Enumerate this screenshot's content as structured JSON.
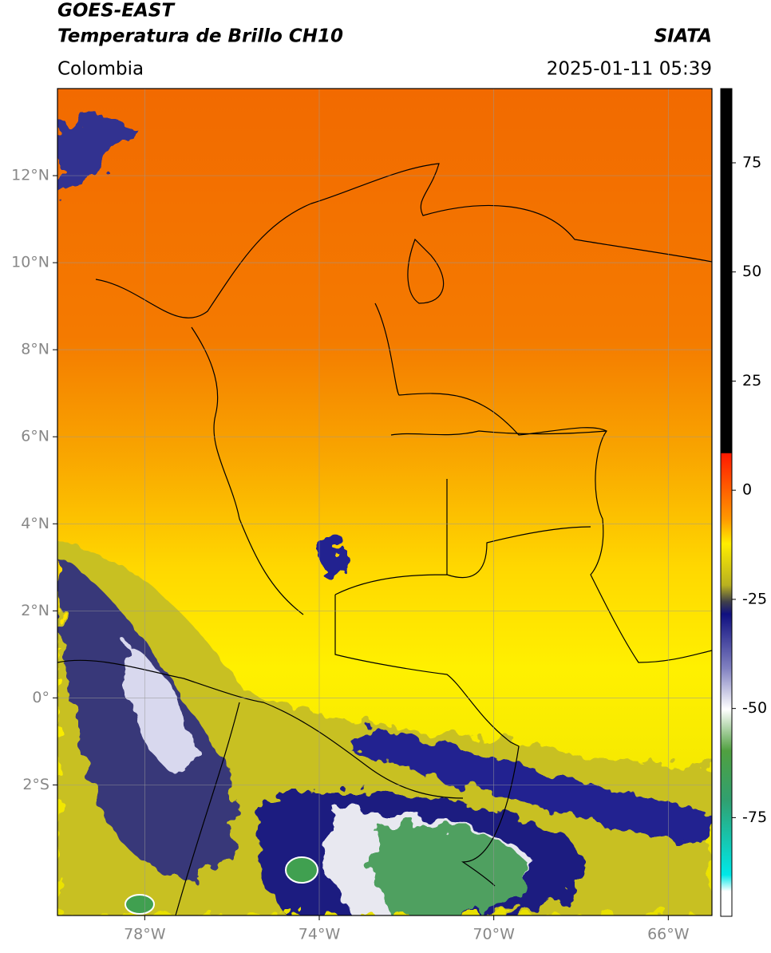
{
  "header": {
    "title": "GOES-EAST",
    "subtitle": "Temperatura de Brillo CH10",
    "source": "SIATA",
    "region": "Colombia",
    "timestamp": "2025-01-11 05:39"
  },
  "map": {
    "xlim": [
      -80,
      -65
    ],
    "ylim": [
      -5,
      14
    ],
    "xticks": [
      {
        "value": -78,
        "label": "78°W"
      },
      {
        "value": -74,
        "label": "74°W"
      },
      {
        "value": -70,
        "label": "70°W"
      },
      {
        "value": -66,
        "label": "66°W"
      }
    ],
    "yticks": [
      {
        "value": 12,
        "label": "12°N"
      },
      {
        "value": 10,
        "label": "10°N"
      },
      {
        "value": 8,
        "label": "8°N"
      },
      {
        "value": 6,
        "label": "6°N"
      },
      {
        "value": 4,
        "label": "4°N"
      },
      {
        "value": 2,
        "label": "2°N"
      },
      {
        "value": 0,
        "label": "0°"
      },
      {
        "value": -2,
        "label": "2°S"
      }
    ]
  },
  "colorbar": {
    "lim": [
      -97.6,
      92
    ],
    "ticks": [
      75,
      50,
      25,
      0,
      -25,
      -50,
      -75
    ]
  }
}
